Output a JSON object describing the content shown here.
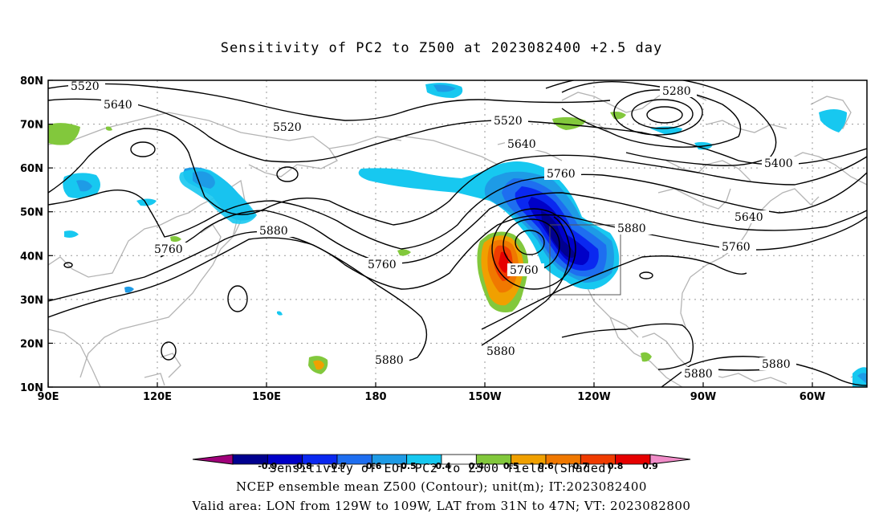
{
  "title": "Sensitivity of PC2 to Z500 at 2023082400 +2.5 day",
  "axes": {
    "lat_labels": [
      "80N",
      "70N",
      "60N",
      "50N",
      "40N",
      "30N",
      "20N",
      "10N"
    ],
    "lon_labels": [
      "90E",
      "120E",
      "150E",
      "180",
      "150W",
      "120W",
      "90W",
      "60W"
    ]
  },
  "contours": {
    "labels": [
      "5520",
      "5640",
      "5520",
      "5760",
      "5880",
      "5760",
      "5520",
      "5640",
      "5760",
      "5280",
      "5400",
      "5640",
      "5880",
      "5760",
      "5760",
      "5880",
      "5880",
      "5880",
      "5880"
    ]
  },
  "colorbar": {
    "ticks": [
      "-0.9",
      "-0.8",
      "-0.7",
      "-0.6",
      "-0.5",
      "-0.4",
      "0.4",
      "0.5",
      "0.6",
      "0.7",
      "0.8",
      "0.9"
    ],
    "colors": [
      "#a0007a",
      "#00008f",
      "#0000c8",
      "#0a28f0",
      "#1e6ef0",
      "#1e9be6",
      "#17c8f0",
      "#ffffff",
      "#82c83c",
      "#f0a000",
      "#f07800",
      "#f03c00",
      "#e60000",
      "#f08cc8"
    ],
    "label": "Sensitivity of EOF PC2 to Z500 field (Shaded)"
  },
  "footer": {
    "line1": "NCEP ensemble mean Z500 (Contour); unit(m); IT:2023082400",
    "line2": "Valid area: LON from 129W to 109W, LAT from 31N to 47N; VT: 2023082800"
  }
}
